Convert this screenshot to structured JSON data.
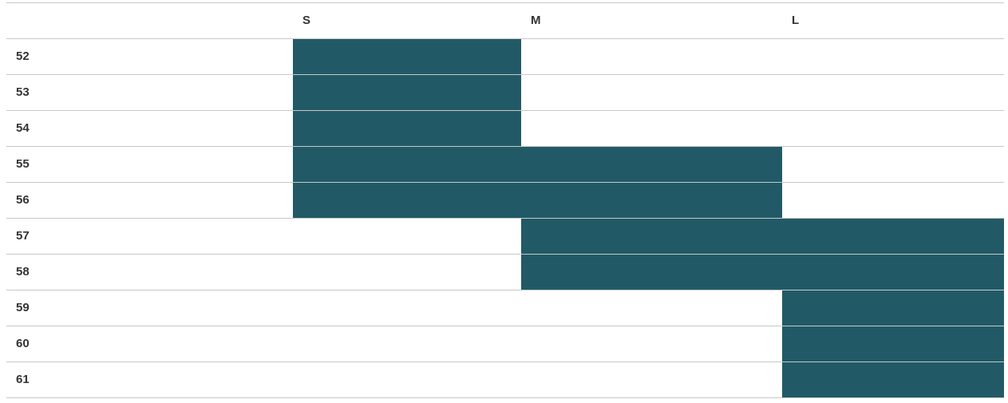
{
  "table": {
    "columns": [
      "S",
      "M",
      "L"
    ],
    "rows": [
      {
        "label": "52",
        "fits": [
          true,
          false,
          false
        ]
      },
      {
        "label": "53",
        "fits": [
          true,
          false,
          false
        ]
      },
      {
        "label": "54",
        "fits": [
          true,
          false,
          false
        ]
      },
      {
        "label": "55",
        "fits": [
          true,
          true,
          false
        ]
      },
      {
        "label": "56",
        "fits": [
          true,
          true,
          false
        ]
      },
      {
        "label": "57",
        "fits": [
          false,
          true,
          true
        ]
      },
      {
        "label": "58",
        "fits": [
          false,
          true,
          true
        ]
      },
      {
        "label": "59",
        "fits": [
          false,
          false,
          true
        ]
      },
      {
        "label": "60",
        "fits": [
          false,
          false,
          true
        ]
      },
      {
        "label": "61",
        "fits": [
          false,
          false,
          true
        ]
      }
    ]
  }
}
